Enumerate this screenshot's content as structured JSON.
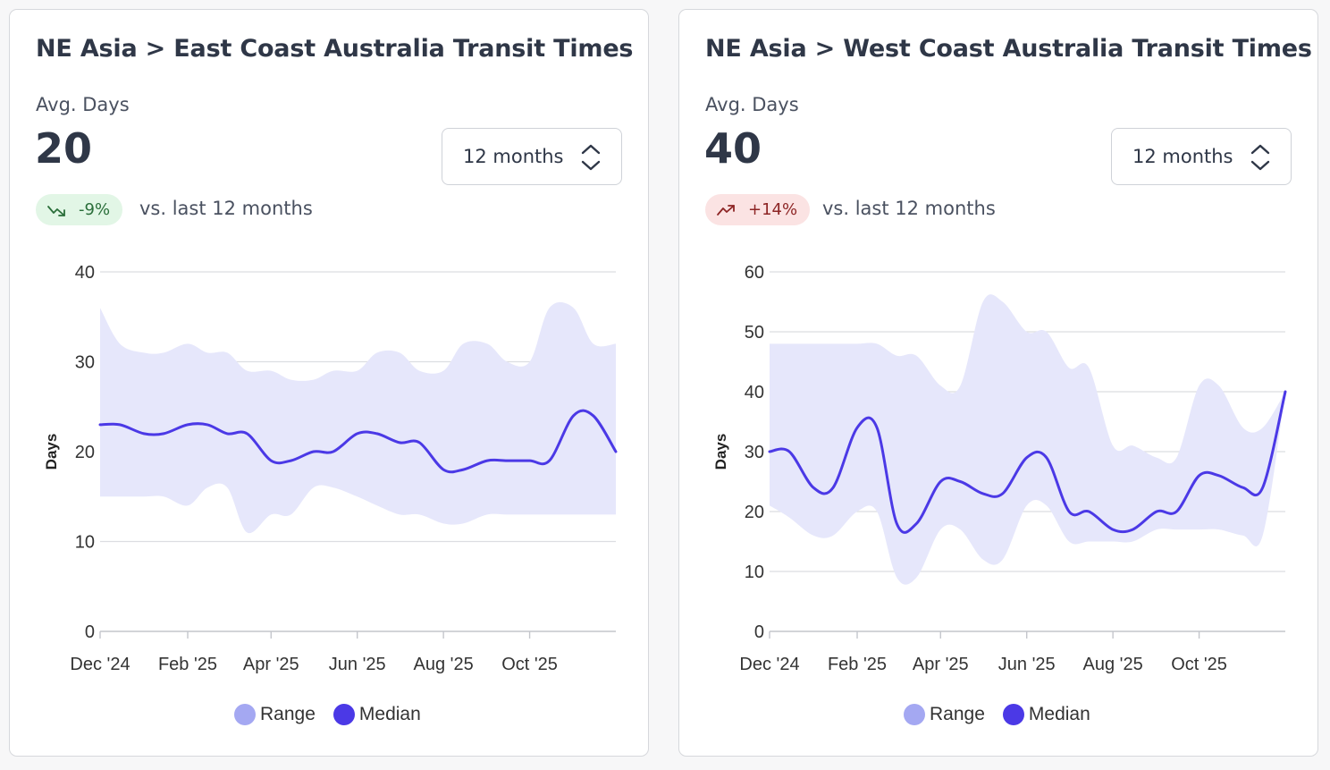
{
  "colors": {
    "range_fill": "#e6e7fb",
    "range_legend": "#a4a8f2",
    "median": "#4b39e6",
    "grid": "#dcdde1",
    "badge_down_bg": "#e2f6e6",
    "badge_up_bg": "#fbe3e3"
  },
  "cards": [
    {
      "title": "NE Asia > East Coast Australia Transit Times",
      "metric_label": "Avg. Days",
      "metric_value": "20",
      "period_select": "12 months",
      "change": {
        "text": "-9%",
        "direction": "down",
        "icon": "trend-down-icon"
      },
      "compare_text": "vs. last 12 months",
      "legend": [
        "Range",
        "Median"
      ]
    },
    {
      "title": "NE Asia > West Coast Australia Transit Times",
      "metric_label": "Avg. Days",
      "metric_value": "40",
      "period_select": "12 months",
      "change": {
        "text": "+14%",
        "direction": "up",
        "icon": "trend-up-icon"
      },
      "compare_text": "vs. last 12 months",
      "legend": [
        "Range",
        "Median"
      ]
    }
  ],
  "chart_data": [
    {
      "type": "area",
      "ylabel": "Days",
      "ylim": [
        0,
        40
      ],
      "yticks": [
        0,
        10,
        20,
        30,
        40
      ],
      "grid": true,
      "legend_position": "bottom",
      "x_tick_labels": [
        "Dec '24",
        "Feb '25",
        "Apr '25",
        "Jun '25",
        "Aug '25",
        "Oct '25"
      ],
      "x": [
        "2024-12-01",
        "2024-12-15",
        "2025-01-01",
        "2025-01-15",
        "2025-02-01",
        "2025-02-15",
        "2025-03-01",
        "2025-03-15",
        "2025-04-01",
        "2025-04-15",
        "2025-05-01",
        "2025-05-15",
        "2025-06-01",
        "2025-06-15",
        "2025-07-01",
        "2025-07-15",
        "2025-08-01",
        "2025-08-15",
        "2025-09-01",
        "2025-09-15",
        "2025-10-01",
        "2025-10-15",
        "2025-11-01",
        "2025-11-15",
        "2025-12-01"
      ],
      "series": [
        {
          "name": "Range",
          "kind": "band",
          "low": [
            15,
            15,
            15,
            15,
            14,
            16,
            16,
            11,
            13,
            13,
            16,
            16,
            15,
            14,
            13,
            13,
            12,
            12,
            13,
            13,
            13,
            13,
            13,
            13,
            13
          ],
          "high": [
            36,
            32,
            31,
            31,
            32,
            31,
            31,
            29,
            29,
            28,
            28,
            29,
            29,
            31,
            31,
            29,
            29,
            32,
            32,
            30,
            30,
            36,
            36,
            32,
            32
          ]
        },
        {
          "name": "Median",
          "kind": "line",
          "values": [
            23,
            23,
            22,
            22,
            23,
            23,
            22,
            22,
            19,
            19,
            20,
            20,
            22,
            22,
            21,
            21,
            18,
            18,
            19,
            19,
            19,
            19,
            24,
            24,
            20
          ]
        }
      ]
    },
    {
      "type": "area",
      "ylabel": "Days",
      "ylim": [
        0,
        60
      ],
      "yticks": [
        0,
        10,
        20,
        30,
        40,
        50,
        60
      ],
      "grid": true,
      "legend_position": "bottom",
      "x_tick_labels": [
        "Dec '24",
        "Feb '25",
        "Apr '25",
        "Jun '25",
        "Aug '25",
        "Oct '25"
      ],
      "x": [
        "2024-12-01",
        "2024-12-15",
        "2025-01-01",
        "2025-01-15",
        "2025-02-01",
        "2025-02-15",
        "2025-03-01",
        "2025-03-15",
        "2025-04-01",
        "2025-04-15",
        "2025-05-01",
        "2025-05-15",
        "2025-06-01",
        "2025-06-15",
        "2025-07-01",
        "2025-07-15",
        "2025-08-01",
        "2025-08-15",
        "2025-09-01",
        "2025-09-15",
        "2025-10-01",
        "2025-10-15",
        "2025-11-01",
        "2025-11-15",
        "2025-12-01"
      ],
      "series": [
        {
          "name": "Range",
          "kind": "band",
          "low": [
            21,
            19,
            16,
            16,
            20,
            20,
            9,
            9,
            17,
            17,
            12,
            12,
            21,
            21,
            15,
            15,
            15,
            15,
            17,
            17,
            17,
            17,
            16,
            16,
            40
          ],
          "high": [
            48,
            48,
            48,
            48,
            48,
            48,
            46,
            46,
            41,
            41,
            55,
            55,
            50,
            50,
            44,
            44,
            31,
            31,
            29,
            29,
            41,
            41,
            34,
            34,
            40
          ]
        },
        {
          "name": "Median",
          "kind": "line",
          "values": [
            30,
            30,
            24,
            24,
            34,
            34,
            18,
            18,
            25,
            25,
            23,
            23,
            29,
            29,
            20,
            20,
            17,
            17,
            20,
            20,
            26,
            26,
            24,
            24,
            40
          ]
        }
      ]
    }
  ]
}
